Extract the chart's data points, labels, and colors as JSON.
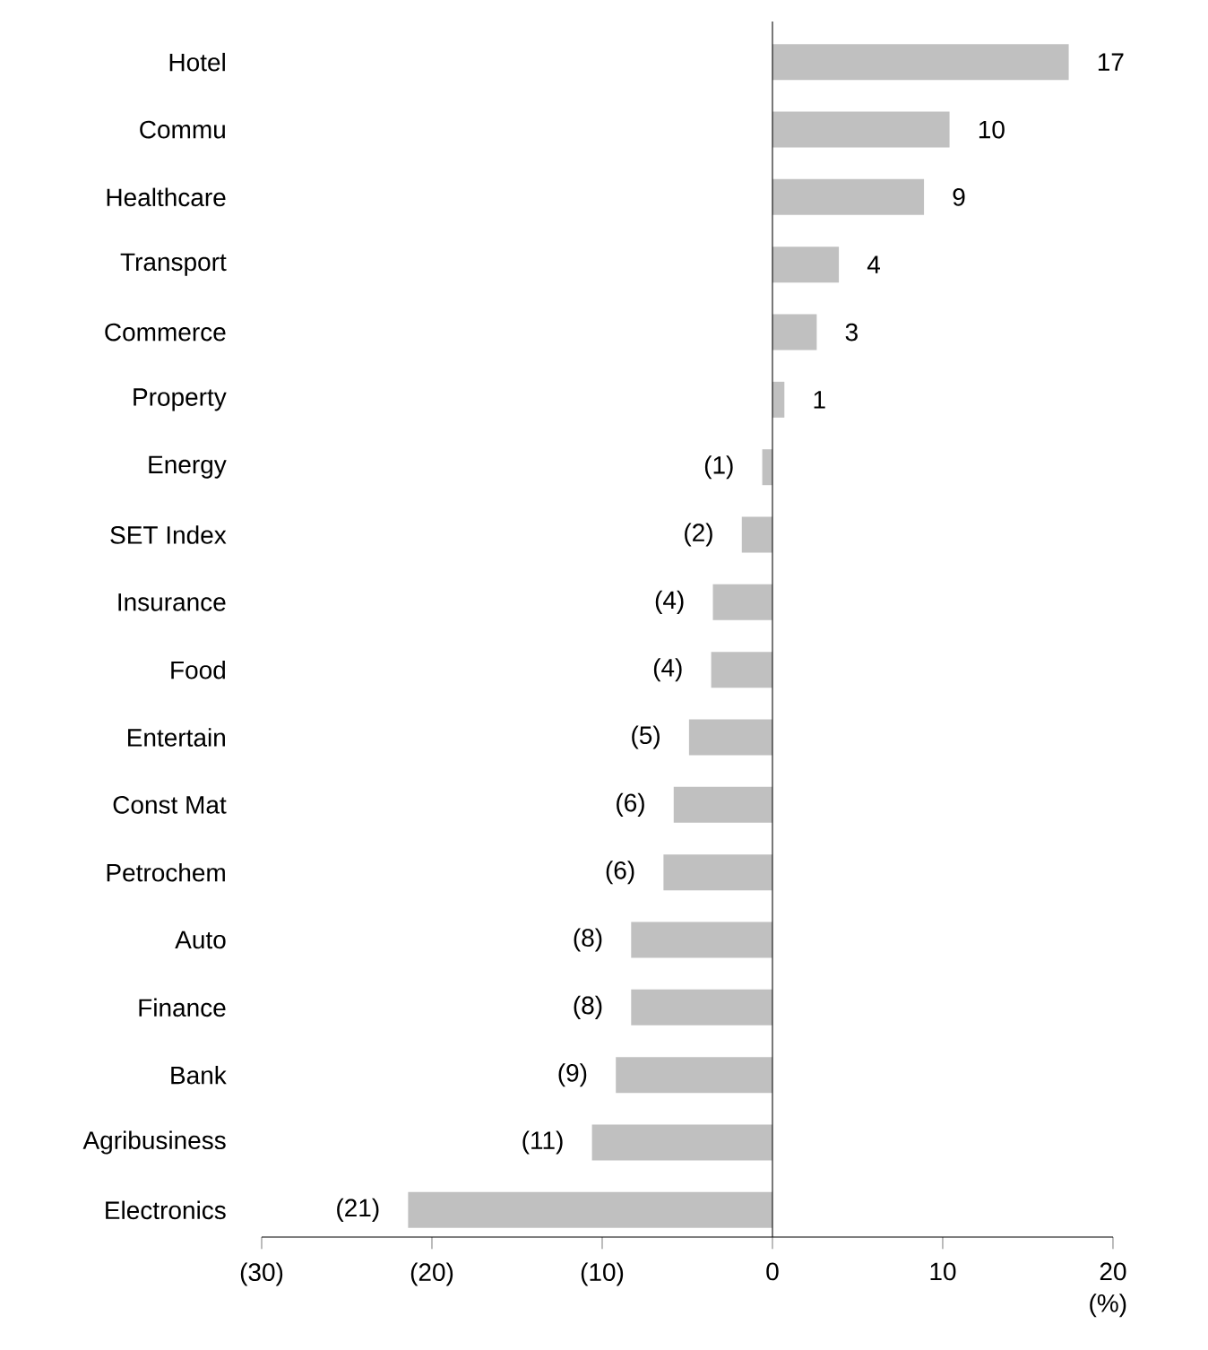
{
  "chart_data": {
    "type": "bar",
    "orientation": "horizontal",
    "xlabel": "(%)",
    "categories": [
      "Hotel",
      "Commu",
      "Healthcare",
      "Transport",
      "Commerce",
      "Property",
      "Energy",
      "SET Index",
      "Insurance",
      "Food",
      "Entertain",
      "Const Mat",
      "Petrochem",
      "Auto",
      "Finance",
      "Bank",
      "Agribusiness",
      "Electronics"
    ],
    "values": [
      17.4,
      10.4,
      8.9,
      3.9,
      2.6,
      0.7,
      -0.6,
      -1.8,
      -3.5,
      -3.6,
      -4.9,
      -5.8,
      -6.4,
      -8.3,
      -8.3,
      -9.2,
      -10.6,
      -21.4
    ],
    "value_labels": [
      "17",
      "10",
      "9",
      "4",
      "3",
      "1",
      "(1)",
      "(2)",
      "(4)",
      "(4)",
      "(5)",
      "(6)",
      "(6)",
      "(8)",
      "(8)",
      "(9)",
      "(11)",
      "(21)"
    ],
    "color": "#c0c0c0",
    "xlim": [
      -30,
      20
    ],
    "xticks": [
      {
        "value": -30,
        "label": "(30)"
      },
      {
        "value": -20,
        "label": "(20)"
      },
      {
        "value": -10,
        "label": "(10)"
      },
      0,
      10,
      20
    ]
  }
}
